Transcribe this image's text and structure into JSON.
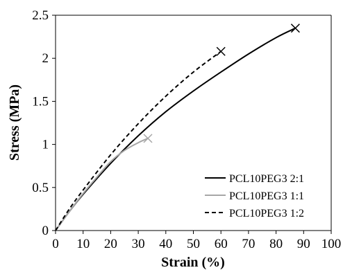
{
  "chart_data": {
    "type": "line",
    "xlabel": "Strain (%)",
    "ylabel": "Stress (MPa)",
    "xlim": [
      0,
      100
    ],
    "ylim": [
      0,
      2.5
    ],
    "x_ticks": [
      "0",
      "10",
      "20",
      "30",
      "40",
      "50",
      "60",
      "70",
      "80",
      "90",
      "100"
    ],
    "y_ticks": [
      "0",
      "0.5",
      "1",
      "1.5",
      "2",
      "2.5"
    ],
    "grid": false,
    "legend_position": "bottom-right",
    "series": [
      {
        "name": "PCL10PEG3 2:1",
        "color": "#000000",
        "dash": "solid",
        "marker_at_end": "x",
        "x": [
          0,
          5,
          10,
          20,
          30,
          40,
          50,
          60,
          70,
          80,
          87
        ],
        "y": [
          0,
          0.22,
          0.42,
          0.78,
          1.1,
          1.38,
          1.62,
          1.84,
          2.05,
          2.24,
          2.35
        ]
      },
      {
        "name": "PCL10PEG3 1:1",
        "color": "#a6a6a6",
        "dash": "solid",
        "marker_at_end": "x",
        "x": [
          0,
          5,
          10,
          15,
          20,
          25,
          30,
          33.5
        ],
        "y": [
          0,
          0.22,
          0.43,
          0.62,
          0.8,
          0.93,
          1.02,
          1.07
        ]
      },
      {
        "name": "PCL10PEG3 1:2",
        "color": "#000000",
        "dash": "dashed",
        "marker_at_end": "x",
        "x": [
          0,
          5,
          10,
          20,
          30,
          40,
          50,
          60
        ],
        "y": [
          0,
          0.25,
          0.47,
          0.88,
          1.24,
          1.56,
          1.84,
          2.08
        ]
      }
    ]
  }
}
